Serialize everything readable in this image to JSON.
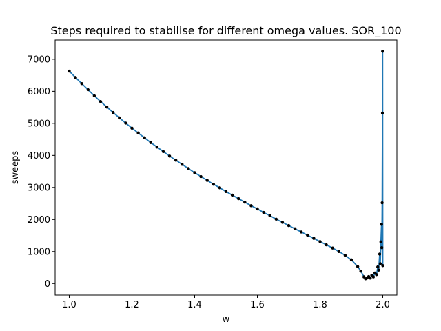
{
  "chart_data": {
    "type": "line",
    "title": "Steps required to stabilise for different omega values. SOR_100",
    "xlabel": "w",
    "ylabel": "sweeps",
    "xlim": [
      0.955,
      2.045
    ],
    "ylim": [
      -360,
      7600
    ],
    "xticks": [
      1.0,
      1.2,
      1.4,
      1.6,
      1.8,
      2.0
    ],
    "xtick_labels": [
      "1.0",
      "1.2",
      "1.4",
      "1.6",
      "1.8",
      "2.0"
    ],
    "yticks": [
      0,
      1000,
      2000,
      3000,
      4000,
      5000,
      6000,
      7000
    ],
    "ytick_labels": [
      "0",
      "1000",
      "2000",
      "3000",
      "4000",
      "5000",
      "6000",
      "7000"
    ],
    "grid": false,
    "series": [
      {
        "color": "#1f77b4",
        "marker_color": "#000000",
        "x": [
          1.0,
          1.02,
          1.04,
          1.06,
          1.08,
          1.1,
          1.12,
          1.14,
          1.16,
          1.18,
          1.2,
          1.22,
          1.24,
          1.26,
          1.28,
          1.3,
          1.32,
          1.34,
          1.36,
          1.38,
          1.4,
          1.42,
          1.44,
          1.46,
          1.48,
          1.5,
          1.52,
          1.54,
          1.56,
          1.58,
          1.6,
          1.62,
          1.64,
          1.66,
          1.68,
          1.7,
          1.72,
          1.74,
          1.76,
          1.78,
          1.8,
          1.82,
          1.84,
          1.86,
          1.88,
          1.9,
          1.92,
          1.93,
          1.94,
          1.945,
          1.95,
          1.955,
          1.96,
          1.965,
          1.97,
          1.975,
          1.98,
          1.984,
          1.987,
          1.99,
          1.992,
          1.994,
          1.996,
          1.997,
          1.998,
          1.999,
          1.9995,
          2.0
        ],
        "y": [
          6630,
          6430,
          6240,
          6050,
          5860,
          5680,
          5510,
          5340,
          5170,
          5010,
          4850,
          4700,
          4550,
          4400,
          4260,
          4120,
          3980,
          3850,
          3720,
          3590,
          3460,
          3340,
          3220,
          3100,
          2990,
          2870,
          2760,
          2650,
          2540,
          2430,
          2330,
          2220,
          2120,
          2010,
          1910,
          1810,
          1710,
          1610,
          1510,
          1410,
          1310,
          1210,
          1110,
          1000,
          880,
          740,
          530,
          390,
          210,
          150,
          175,
          220,
          170,
          260,
          210,
          330,
          280,
          520,
          420,
          920,
          620,
          1300,
          1850,
          1120,
          2520,
          5320,
          7250,
          560
        ]
      }
    ]
  }
}
